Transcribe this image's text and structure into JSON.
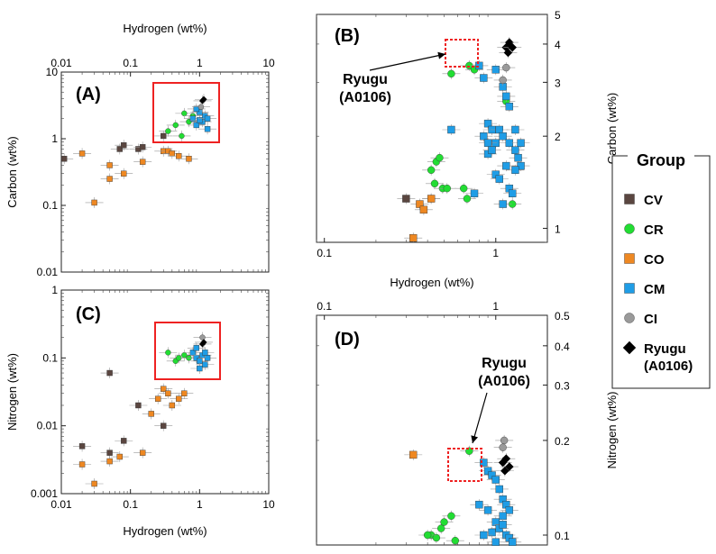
{
  "chart_data": [
    {
      "panel": "(A)",
      "type": "scatter",
      "xlabel": "Hydrogen (wt%)",
      "ylabel": "Carbon (wt%)",
      "xscale": "log",
      "yscale": "log",
      "xlim": [
        0.01,
        10
      ],
      "ylim": [
        0.01,
        10
      ],
      "xticks": [
        "0.01",
        "0.1",
        "1",
        "10"
      ],
      "yticks": [
        "0.01",
        "0.1",
        "1",
        "10"
      ],
      "series": [
        {
          "name": "CV",
          "points": [
            [
              0.011,
              0.5
            ],
            [
              0.07,
              0.7
            ],
            [
              0.08,
              0.8
            ],
            [
              0.13,
              0.7
            ],
            [
              0.15,
              0.75
            ],
            [
              0.3,
              1.1
            ]
          ]
        },
        {
          "name": "CR",
          "points": [
            [
              0.35,
              1.3
            ],
            [
              0.45,
              1.6
            ],
            [
              0.55,
              1.1
            ],
            [
              0.6,
              2.4
            ],
            [
              0.7,
              1.8
            ],
            [
              0.8,
              2.2
            ]
          ]
        },
        {
          "name": "CO",
          "points": [
            [
              0.02,
              0.6
            ],
            [
              0.03,
              0.11
            ],
            [
              0.05,
              0.4
            ],
            [
              0.05,
              0.25
            ],
            [
              0.08,
              0.3
            ],
            [
              0.15,
              0.45
            ],
            [
              0.3,
              0.65
            ],
            [
              0.35,
              0.65
            ],
            [
              0.4,
              0.6
            ],
            [
              0.5,
              0.55
            ],
            [
              0.7,
              0.5
            ]
          ]
        },
        {
          "name": "CM",
          "points": [
            [
              0.8,
              2.0
            ],
            [
              0.9,
              1.6
            ],
            [
              1.0,
              2.5
            ],
            [
              1.1,
              1.8
            ],
            [
              1.2,
              2.2
            ],
            [
              1.3,
              1.4
            ],
            [
              1.0,
              1.9
            ],
            [
              0.9,
              2.8
            ],
            [
              1.3,
              2.0
            ]
          ]
        },
        {
          "name": "CI",
          "points": [
            [
              1.05,
              3.0
            ]
          ]
        },
        {
          "name": "Ryugu (A0106)",
          "points": [
            [
              1.1,
              3.7
            ],
            [
              1.15,
              3.9
            ]
          ]
        }
      ]
    },
    {
      "panel": "(B)",
      "type": "scatter",
      "xlabel": "Hydrogen (wt%)",
      "ylabel": "Carbon (wt%)",
      "xscale": "log",
      "yscale": "log",
      "xlim": [
        0.09,
        2.0
      ],
      "ylim": [
        0.9,
        5
      ],
      "xticks": [
        "0.1",
        "1"
      ],
      "yticks": [
        "1",
        "2",
        "3",
        "4",
        "5"
      ],
      "annotation": "Ryugu\n(A0106)",
      "series": [
        {
          "name": "CV",
          "points": [
            [
              0.3,
              1.25
            ]
          ]
        },
        {
          "name": "CR",
          "points": [
            [
              0.42,
              1.55
            ],
            [
              0.45,
              1.65
            ],
            [
              0.47,
              1.7
            ],
            [
              0.44,
              1.4
            ],
            [
              0.49,
              1.35
            ],
            [
              0.52,
              1.35
            ],
            [
              0.42,
              1.25
            ],
            [
              0.65,
              1.35
            ],
            [
              0.68,
              1.25
            ],
            [
              0.7,
              3.4
            ],
            [
              0.75,
              3.3
            ],
            [
              0.55,
              3.2
            ],
            [
              1.15,
              2.6
            ],
            [
              1.25,
              1.2
            ]
          ]
        },
        {
          "name": "CO",
          "points": [
            [
              0.33,
              0.93
            ],
            [
              0.36,
              1.2
            ],
            [
              0.38,
              1.15
            ],
            [
              0.42,
              1.25
            ]
          ]
        },
        {
          "name": "CM",
          "points": [
            [
              0.8,
              3.4
            ],
            [
              0.85,
              3.1
            ],
            [
              1.0,
              3.3
            ],
            [
              1.1,
              2.9
            ],
            [
              1.15,
              2.7
            ],
            [
              1.2,
              2.5
            ],
            [
              0.55,
              2.1
            ],
            [
              0.85,
              2.0
            ],
            [
              0.9,
              2.2
            ],
            [
              0.95,
              2.1
            ],
            [
              1.0,
              1.9
            ],
            [
              1.05,
              2.1
            ],
            [
              1.1,
              2.0
            ],
            [
              1.2,
              1.9
            ],
            [
              1.3,
              1.8
            ],
            [
              1.35,
              1.7
            ],
            [
              1.4,
              1.6
            ],
            [
              1.3,
              1.55
            ],
            [
              0.9,
              1.75
            ],
            [
              1.0,
              1.5
            ],
            [
              1.05,
              1.45
            ],
            [
              1.15,
              1.6
            ],
            [
              1.2,
              1.35
            ],
            [
              1.25,
              1.3
            ],
            [
              1.1,
              1.2
            ],
            [
              0.75,
              1.3
            ],
            [
              0.9,
              1.9
            ],
            [
              0.95,
              1.8
            ],
            [
              1.3,
              2.1
            ],
            [
              1.4,
              1.9
            ]
          ]
        },
        {
          "name": "CI",
          "points": [
            [
              1.1,
              3.05
            ],
            [
              1.15,
              3.35
            ]
          ]
        },
        {
          "name": "Ryugu (A0106)",
          "points": [
            [
              1.15,
              3.9
            ],
            [
              1.2,
              4.05
            ],
            [
              1.25,
              3.9
            ],
            [
              1.18,
              3.75
            ]
          ]
        }
      ]
    },
    {
      "panel": "(C)",
      "type": "scatter",
      "xlabel": "Hydrogen (wt%)",
      "ylabel": "Nitrogen (wt%)",
      "xscale": "log",
      "yscale": "log",
      "xlim": [
        0.01,
        10
      ],
      "ylim": [
        0.001,
        1
      ],
      "xticks": [
        "0.01",
        "0.1",
        "1",
        "10"
      ],
      "yticks": [
        "0.001",
        "0.01",
        "0.1",
        "1"
      ],
      "series": [
        {
          "name": "CV",
          "points": [
            [
              0.02,
              0.005
            ],
            [
              0.05,
              0.06
            ],
            [
              0.05,
              0.004
            ],
            [
              0.08,
              0.006
            ],
            [
              0.13,
              0.02
            ],
            [
              0.3,
              0.01
            ]
          ]
        },
        {
          "name": "CR",
          "points": [
            [
              0.35,
              0.12
            ],
            [
              0.45,
              0.09
            ],
            [
              0.5,
              0.1
            ],
            [
              0.6,
              0.11
            ],
            [
              0.7,
              0.1
            ]
          ]
        },
        {
          "name": "CO",
          "points": [
            [
              0.02,
              0.0027
            ],
            [
              0.03,
              0.0014
            ],
            [
              0.05,
              0.003
            ],
            [
              0.07,
              0.0035
            ],
            [
              0.15,
              0.004
            ],
            [
              0.2,
              0.015
            ],
            [
              0.25,
              0.025
            ],
            [
              0.3,
              0.035
            ],
            [
              0.35,
              0.03
            ],
            [
              0.4,
              0.02
            ],
            [
              0.5,
              0.025
            ],
            [
              0.6,
              0.03
            ]
          ]
        },
        {
          "name": "CM",
          "points": [
            [
              0.8,
              0.12
            ],
            [
              0.9,
              0.1
            ],
            [
              1.0,
              0.09
            ],
            [
              1.1,
              0.11
            ],
            [
              1.2,
              0.08
            ],
            [
              1.3,
              0.1
            ],
            [
              0.9,
              0.14
            ],
            [
              1.0,
              0.07
            ],
            [
              1.2,
              0.12
            ]
          ]
        },
        {
          "name": "CI",
          "points": [
            [
              1.1,
              0.2
            ]
          ]
        },
        {
          "name": "Ryugu (A0106)",
          "points": [
            [
              1.1,
              0.16
            ],
            [
              1.15,
              0.17
            ]
          ]
        }
      ]
    },
    {
      "panel": "(D)",
      "type": "scatter",
      "xlabel": "",
      "ylabel": "Nitrogen (wt%)",
      "xscale": "log",
      "yscale": "log",
      "xlim": [
        0.09,
        2.0
      ],
      "ylim": [
        0.093,
        0.5
      ],
      "xticks": [
        "0.1",
        "1"
      ],
      "yticks": [
        "0.1",
        "0.2",
        "0.3",
        "0.4",
        "0.5"
      ],
      "annotation": "Ryugu\n(A0106)",
      "series": [
        {
          "name": "CV",
          "points": []
        },
        {
          "name": "CR",
          "points": [
            [
              0.7,
              0.185
            ],
            [
              0.48,
              0.105
            ],
            [
              0.5,
              0.11
            ],
            [
              0.55,
              0.115
            ],
            [
              0.42,
              0.1
            ],
            [
              0.45,
              0.098
            ],
            [
              0.4,
              0.1
            ],
            [
              0.58,
              0.096
            ]
          ]
        },
        {
          "name": "CO",
          "points": [
            [
              0.33,
              0.18
            ]
          ]
        },
        {
          "name": "CM",
          "points": [
            [
              0.85,
              0.17
            ],
            [
              0.9,
              0.16
            ],
            [
              0.95,
              0.155
            ],
            [
              1.0,
              0.15
            ],
            [
              1.05,
              0.14
            ],
            [
              1.1,
              0.13
            ],
            [
              1.15,
              0.125
            ],
            [
              1.2,
              0.12
            ],
            [
              1.1,
              0.115
            ],
            [
              1.0,
              0.11
            ],
            [
              1.05,
              0.105
            ],
            [
              1.15,
              0.1
            ],
            [
              1.2,
              0.098
            ],
            [
              0.95,
              0.102
            ],
            [
              0.85,
              0.1
            ],
            [
              1.0,
              0.095
            ],
            [
              1.1,
              0.108
            ],
            [
              1.25,
              0.095
            ],
            [
              0.9,
              0.12
            ],
            [
              0.8,
              0.125
            ]
          ]
        },
        {
          "name": "CI",
          "points": [
            [
              1.1,
              0.19
            ],
            [
              1.12,
              0.2
            ]
          ]
        },
        {
          "name": "Ryugu (A0106)",
          "points": [
            [
              1.1,
              0.17
            ],
            [
              1.15,
              0.175
            ],
            [
              1.2,
              0.165
            ],
            [
              1.13,
              0.16
            ]
          ]
        }
      ]
    }
  ],
  "legend": {
    "title": "Group",
    "items": [
      {
        "label": "CV",
        "color": "#5a4640",
        "marker": "square"
      },
      {
        "label": "CR",
        "color": "#22dd33",
        "marker": "circle"
      },
      {
        "label": "CO",
        "color": "#ee8822",
        "marker": "square"
      },
      {
        "label": "CM",
        "color": "#1f9de6",
        "marker": "square"
      },
      {
        "label": "CI",
        "color": "#9a9a9a",
        "marker": "circle"
      },
      {
        "label": "Ryugu\n(A0106)",
        "color": "#000000",
        "marker": "diamond"
      }
    ]
  },
  "highlight_color": "#ee2222"
}
